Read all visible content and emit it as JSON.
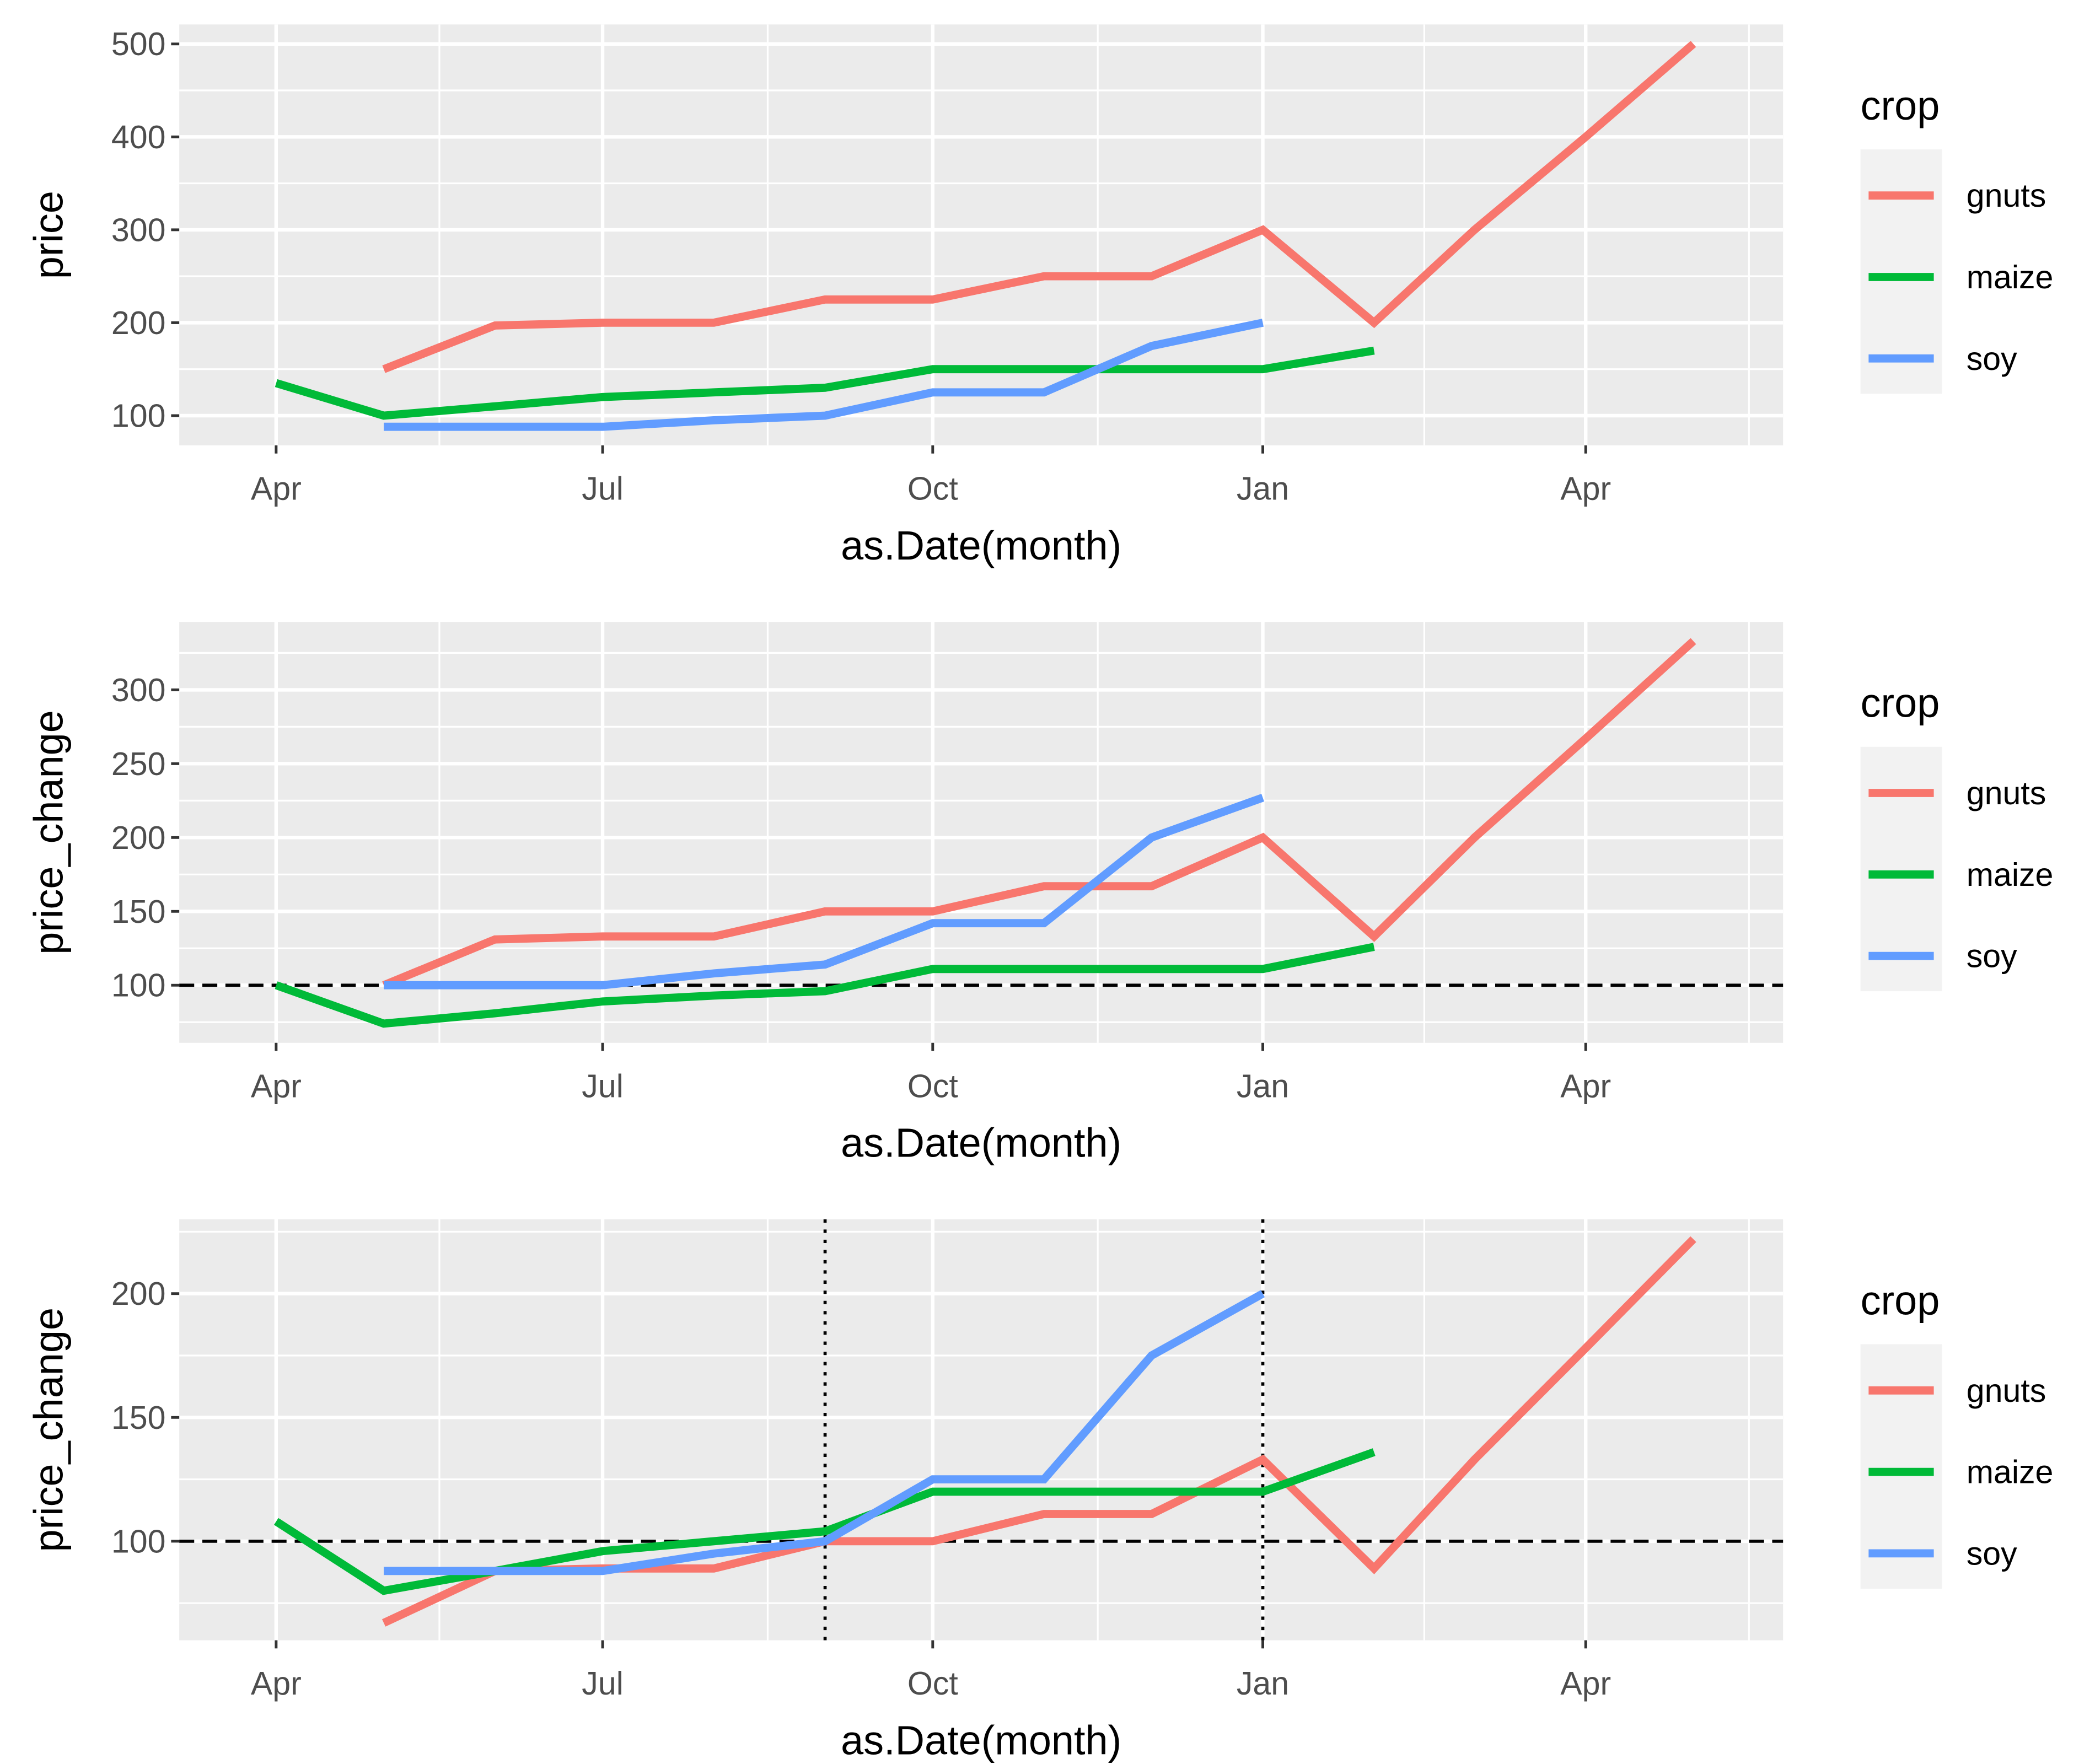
{
  "chart_data": [
    {
      "type": "line",
      "title": "",
      "xlabel": "as.Date(month)",
      "ylabel": "price",
      "x_tick_labels": [
        "Apr",
        "Jul",
        "Oct",
        "Jan",
        "Apr"
      ],
      "x_tick_dates": [
        "2020-04-01",
        "2020-07-01",
        "2020-10-01",
        "2021-01-01",
        "2021-04-01"
      ],
      "xlim": [
        "2020-03-05",
        "2021-05-26"
      ],
      "ylim": [
        68,
        521
      ],
      "y_ticks": [
        100,
        200,
        300,
        400,
        500
      ],
      "y_minor": [
        150,
        250,
        350,
        450
      ],
      "legend_title": "crop",
      "legend_position": "right",
      "grid": true,
      "series": [
        {
          "name": "gnuts",
          "color": "#F8766D",
          "x": [
            "2020-05-01",
            "2020-06-01",
            "2020-07-01",
            "2020-08-01",
            "2020-09-01",
            "2020-10-01",
            "2020-11-01",
            "2020-12-01",
            "2021-01-01",
            "2021-02-01",
            "2021-03-01",
            "2021-04-01",
            "2021-05-01"
          ],
          "values": [
            150,
            197,
            200,
            200,
            225,
            225,
            250,
            250,
            300,
            200,
            300,
            400,
            500
          ]
        },
        {
          "name": "maize",
          "color": "#00BA38",
          "x": [
            "2020-04-01",
            "2020-05-01",
            "2020-06-01",
            "2020-07-01",
            "2020-08-01",
            "2020-09-01",
            "2020-10-01",
            "2020-11-01",
            "2020-12-01",
            "2021-01-01",
            "2021-02-01"
          ],
          "values": [
            135,
            100,
            110,
            120,
            125,
            130,
            150,
            150,
            150,
            150,
            170
          ]
        },
        {
          "name": "soy",
          "color": "#619CFF",
          "x": [
            "2020-05-01",
            "2020-06-01",
            "2020-07-01",
            "2020-08-01",
            "2020-09-01",
            "2020-10-01",
            "2020-11-01",
            "2020-12-01",
            "2021-01-01"
          ],
          "values": [
            88,
            88,
            88,
            95,
            100,
            125,
            125,
            175,
            200
          ]
        }
      ],
      "reference_lines": []
    },
    {
      "type": "line",
      "title": "",
      "xlabel": "as.Date(month)",
      "ylabel": "price_change",
      "x_tick_labels": [
        "Apr",
        "Jul",
        "Oct",
        "Jan",
        "Apr"
      ],
      "x_tick_dates": [
        "2020-04-01",
        "2020-07-01",
        "2020-10-01",
        "2021-01-01",
        "2021-04-01"
      ],
      "xlim": [
        "2020-03-05",
        "2021-05-26"
      ],
      "ylim": [
        61,
        346
      ],
      "y_ticks": [
        100,
        150,
        200,
        250,
        300
      ],
      "y_minor": [
        75,
        125,
        175,
        225,
        275,
        325
      ],
      "legend_title": "crop",
      "legend_position": "right",
      "grid": true,
      "series": [
        {
          "name": "gnuts",
          "color": "#F8766D",
          "x": [
            "2020-05-01",
            "2020-06-01",
            "2020-07-01",
            "2020-08-01",
            "2020-09-01",
            "2020-10-01",
            "2020-11-01",
            "2020-12-01",
            "2021-01-01",
            "2021-02-01",
            "2021-03-01",
            "2021-04-01",
            "2021-05-01"
          ],
          "values": [
            100,
            131,
            133,
            133,
            150,
            150,
            167,
            167,
            200,
            133,
            200,
            267,
            333
          ]
        },
        {
          "name": "maize",
          "color": "#00BA38",
          "x": [
            "2020-04-01",
            "2020-05-01",
            "2020-06-01",
            "2020-07-01",
            "2020-08-01",
            "2020-09-01",
            "2020-10-01",
            "2020-11-01",
            "2020-12-01",
            "2021-01-01",
            "2021-02-01"
          ],
          "values": [
            100,
            74,
            81,
            89,
            93,
            96,
            111,
            111,
            111,
            111,
            126
          ]
        },
        {
          "name": "soy",
          "color": "#619CFF",
          "x": [
            "2020-05-01",
            "2020-06-01",
            "2020-07-01",
            "2020-08-01",
            "2020-09-01",
            "2020-10-01",
            "2020-11-01",
            "2020-12-01",
            "2021-01-01"
          ],
          "values": [
            100,
            100,
            100,
            108,
            114,
            142,
            142,
            200,
            227
          ]
        }
      ],
      "reference_lines": [
        {
          "orientation": "horizontal",
          "value": 100,
          "style": "dashed"
        }
      ]
    },
    {
      "type": "line",
      "title": "",
      "xlabel": "as.Date(month)",
      "ylabel": "price_change",
      "x_tick_labels": [
        "Apr",
        "Jul",
        "Oct",
        "Jan",
        "Apr"
      ],
      "x_tick_dates": [
        "2020-04-01",
        "2020-07-01",
        "2020-10-01",
        "2021-01-01",
        "2021-04-01"
      ],
      "xlim": [
        "2020-03-05",
        "2021-05-26"
      ],
      "ylim": [
        60,
        230
      ],
      "y_ticks": [
        100,
        150,
        200
      ],
      "y_minor": [
        75,
        125,
        175,
        225
      ],
      "legend_title": "crop",
      "legend_position": "right",
      "grid": true,
      "series": [
        {
          "name": "gnuts",
          "color": "#F8766D",
          "x": [
            "2020-05-01",
            "2020-06-01",
            "2020-07-01",
            "2020-08-01",
            "2020-09-01",
            "2020-10-01",
            "2020-11-01",
            "2020-12-01",
            "2021-01-01",
            "2021-02-01",
            "2021-03-01",
            "2021-04-01",
            "2021-05-01"
          ],
          "values": [
            67,
            88,
            89,
            89,
            100,
            100,
            111,
            111,
            133,
            89,
            133,
            178,
            222
          ]
        },
        {
          "name": "maize",
          "color": "#00BA38",
          "x": [
            "2020-04-01",
            "2020-05-01",
            "2020-06-01",
            "2020-07-01",
            "2020-08-01",
            "2020-09-01",
            "2020-10-01",
            "2020-11-01",
            "2020-12-01",
            "2021-01-01",
            "2021-02-01"
          ],
          "values": [
            108,
            80,
            88,
            96,
            100,
            104,
            120,
            120,
            120,
            120,
            136
          ]
        },
        {
          "name": "soy",
          "color": "#619CFF",
          "x": [
            "2020-05-01",
            "2020-06-01",
            "2020-07-01",
            "2020-08-01",
            "2020-09-01",
            "2020-10-01",
            "2020-11-01",
            "2020-12-01",
            "2021-01-01"
          ],
          "values": [
            88,
            88,
            88,
            95,
            100,
            125,
            125,
            175,
            200
          ]
        }
      ],
      "reference_lines": [
        {
          "orientation": "horizontal",
          "value": 100,
          "style": "dashed"
        },
        {
          "orientation": "vertical",
          "value": "2020-09-01",
          "style": "dotted"
        },
        {
          "orientation": "vertical",
          "value": "2021-01-01",
          "style": "dotted"
        }
      ]
    }
  ]
}
